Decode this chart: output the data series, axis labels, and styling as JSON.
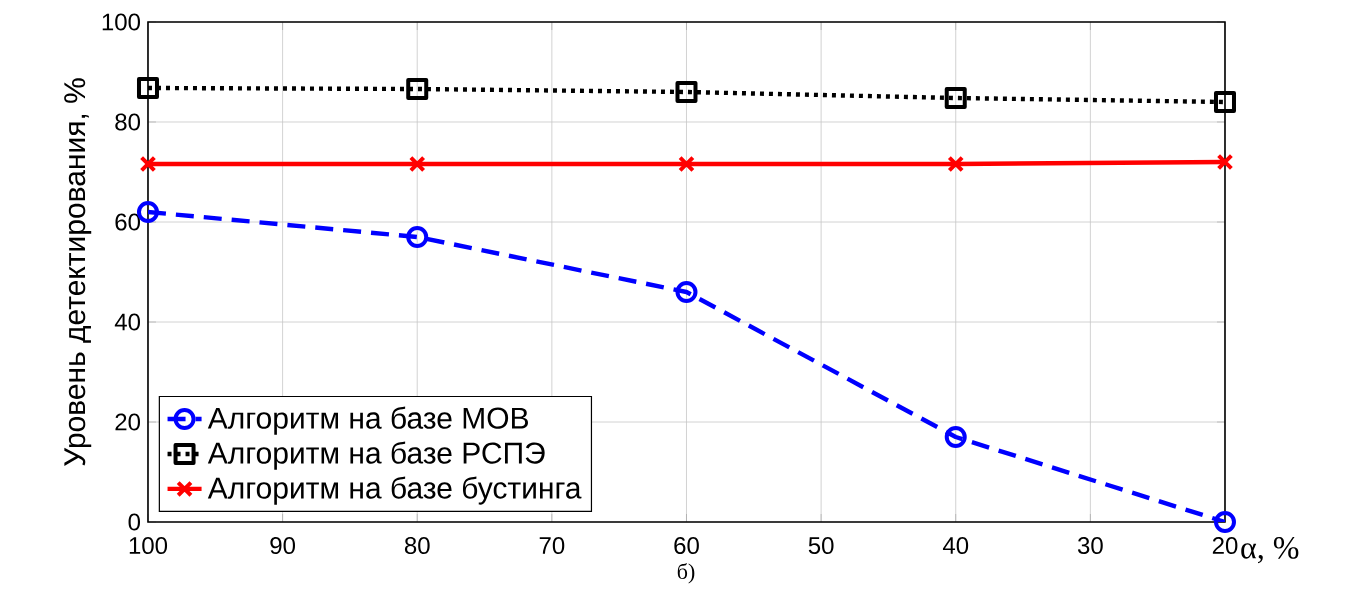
{
  "chart_data": {
    "type": "line",
    "xlabel": "α, %",
    "ylabel": "Уровень детектирования, %",
    "annotations": [
      "б)"
    ],
    "x": [
      100,
      80,
      60,
      40,
      20
    ],
    "series": [
      {
        "name": "Алгоритм на базе МОВ",
        "color": "#0000ff",
        "values": [
          62,
          57,
          46,
          17,
          0
        ],
        "marker": "circle",
        "line_style": "dashed"
      },
      {
        "name": "Алгоритм на базе РСПЭ",
        "color": "#000000",
        "values": [
          86.8,
          86.6,
          86,
          84.8,
          84
        ],
        "marker": "square",
        "line_style": "dotted"
      },
      {
        "name": "Алгоритм на базе бустинга",
        "color": "#ff0000",
        "values": [
          71.6,
          71.6,
          71.6,
          71.6,
          72
        ],
        "marker": "cross",
        "line_style": "solid"
      }
    ],
    "xlim": [
      100,
      20
    ],
    "ylim": [
      0,
      100
    ],
    "xticks": [
      100,
      90,
      80,
      70,
      60,
      50,
      40,
      30,
      20
    ],
    "yticks": [
      0,
      20,
      40,
      60,
      80,
      100
    ],
    "grid": true,
    "legend": "bottom left"
  }
}
